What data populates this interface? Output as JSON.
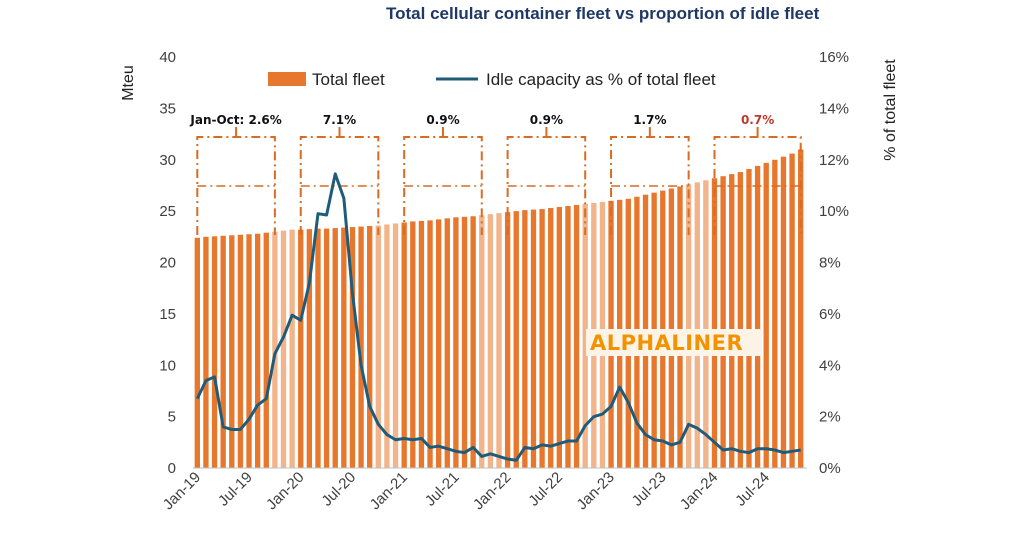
{
  "title": "Total cellular container fleet vs proportion of idle fleet",
  "watermark": "ALPHALINER",
  "colors": {
    "bar": "#e8772e",
    "bar_light": "#f2b48a",
    "line": "#1f5c7a",
    "bracket": "#d96b23",
    "red": "#c0392b",
    "title": "#1f3864",
    "watermark_bg": "#fdf4e7"
  },
  "chart_data": {
    "type": "bar+line",
    "title": "Total cellular container fleet vs proportion of idle fleet",
    "x_tick_labels": [
      "Jan-19",
      "Jul-19",
      "Jan-20",
      "Jul-20",
      "Jan-21",
      "Jul-21",
      "Jan-22",
      "Jul-22",
      "Jan-23",
      "Jul-23",
      "Jan-24",
      "Jul-24"
    ],
    "ylabel_left": "Mteu",
    "ylabel_right": "% of total fleet",
    "ylim_left": [
      0,
      40
    ],
    "ylim_right": [
      0,
      16
    ],
    "left_ticks": [
      "0",
      "5",
      "10",
      "15",
      "20",
      "25",
      "30",
      "35",
      "40"
    ],
    "right_ticks": [
      "0%",
      "2%",
      "4%",
      "6%",
      "8%",
      "10%",
      "12%",
      "14%",
      "16%"
    ],
    "legend": [
      "Total fleet",
      "Idle capacity as % of total fleet"
    ],
    "legend_position": "top",
    "series": [
      {
        "name": "Total fleet",
        "type": "bar",
        "unit": "Mteu",
        "values": [
          22.4,
          22.5,
          22.55,
          22.6,
          22.65,
          22.7,
          22.75,
          22.8,
          22.9,
          23.0,
          23.1,
          23.2,
          23.2,
          23.25,
          23.3,
          23.3,
          23.35,
          23.4,
          23.45,
          23.5,
          23.55,
          23.6,
          23.7,
          23.8,
          23.9,
          24.0,
          24.05,
          24.1,
          24.2,
          24.3,
          24.4,
          24.45,
          24.5,
          24.6,
          24.7,
          24.8,
          24.9,
          25.0,
          25.1,
          25.15,
          25.2,
          25.3,
          25.4,
          25.5,
          25.6,
          25.7,
          25.8,
          25.9,
          26.0,
          26.1,
          26.2,
          26.4,
          26.6,
          26.8,
          27.0,
          27.2,
          27.4,
          27.6,
          27.8,
          28.0,
          28.2,
          28.4,
          28.6,
          28.8,
          29.1,
          29.4,
          29.7,
          30.0,
          30.3,
          30.6,
          31.0
        ]
      },
      {
        "name": "Idle capacity as % of total fleet",
        "type": "line",
        "unit": "%",
        "values": [
          2.7,
          3.4,
          3.55,
          1.6,
          1.5,
          1.5,
          1.9,
          2.45,
          2.7,
          4.45,
          5.1,
          5.95,
          5.75,
          7.2,
          9.9,
          9.85,
          11.45,
          10.5,
          6.8,
          4.0,
          2.4,
          1.7,
          1.3,
          1.1,
          1.15,
          1.1,
          1.15,
          0.8,
          0.85,
          0.75,
          0.65,
          0.6,
          0.8,
          0.45,
          0.55,
          0.45,
          0.35,
          0.3,
          0.8,
          0.75,
          0.9,
          0.85,
          0.95,
          1.05,
          1.05,
          1.65,
          2.0,
          2.1,
          2.4,
          3.15,
          2.55,
          1.75,
          1.3,
          1.1,
          1.05,
          0.9,
          1.0,
          1.7,
          1.55,
          1.3,
          1.0,
          0.7,
          0.75,
          0.65,
          0.6,
          0.75,
          0.75,
          0.7,
          0.6,
          0.65,
          0.7
        ]
      }
    ],
    "annotations": [
      {
        "label": "Jan-Oct: 2.6%",
        "from_month": 0,
        "to_month": 9,
        "color": "black"
      },
      {
        "label": "7.1%",
        "from_month": 12,
        "to_month": 21,
        "color": "black"
      },
      {
        "label": "0.9%",
        "from_month": 24,
        "to_month": 33,
        "color": "black"
      },
      {
        "label": "0.9%",
        "from_month": 36,
        "to_month": 45,
        "color": "black"
      },
      {
        "label": "1.7%",
        "from_month": 48,
        "to_month": 57,
        "color": "black"
      },
      {
        "label": "0.7%",
        "from_month": 60,
        "to_month": 70,
        "color": "red"
      }
    ],
    "light_bar_months": [
      9,
      10,
      11,
      21,
      22,
      23,
      33,
      34,
      35,
      45,
      46,
      47,
      57,
      58,
      59
    ]
  }
}
